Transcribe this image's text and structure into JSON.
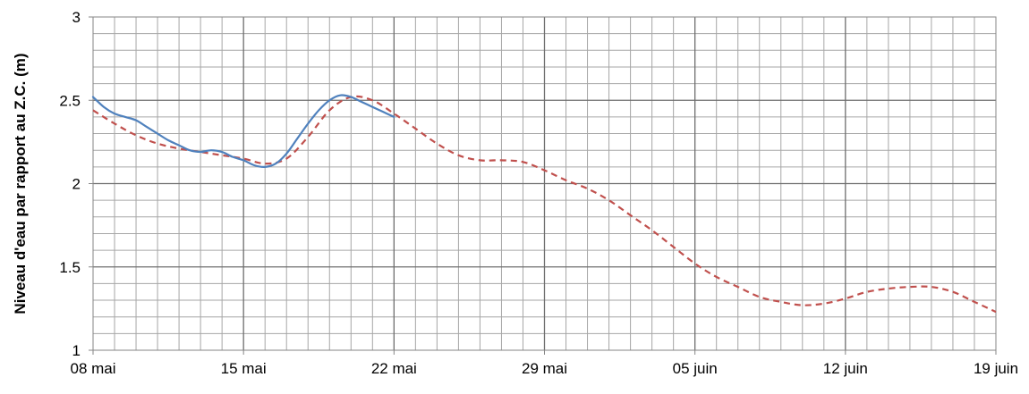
{
  "chart_data": {
    "type": "line",
    "title": "",
    "xlabel": "",
    "ylabel": "Niveau d'eau par rapport au Z.C. (m)",
    "x_ticks": [
      "08 mai",
      "15 mai",
      "22 mai",
      "29 mai",
      "05 juin",
      "12 juin",
      "19 juin"
    ],
    "y_ticks": [
      "1",
      "1.5",
      "2",
      "2.5",
      "3"
    ],
    "xlim": [
      0,
      42
    ],
    "ylim": [
      1,
      3
    ],
    "grid": true,
    "legend": "none",
    "series": [
      {
        "color": "#4f81bd",
        "dash": "solid",
        "x": [
          0,
          0.5,
          1,
          1.5,
          2,
          2.5,
          3,
          3.5,
          4,
          4.5,
          5,
          5.5,
          6,
          6.5,
          7,
          7.5,
          8,
          8.5,
          9,
          9.5,
          10,
          10.5,
          11,
          11.5,
          12,
          12.5,
          13,
          13.5,
          14
        ],
        "y": [
          2.52,
          2.46,
          2.42,
          2.4,
          2.38,
          2.34,
          2.3,
          2.26,
          2.23,
          2.2,
          2.19,
          2.2,
          2.19,
          2.16,
          2.14,
          2.11,
          2.1,
          2.12,
          2.18,
          2.27,
          2.36,
          2.44,
          2.5,
          2.53,
          2.52,
          2.49,
          2.46,
          2.43,
          2.4
        ]
      },
      {
        "color": "#c0504d",
        "dash": "dashed",
        "x": [
          0,
          1,
          2,
          3,
          4,
          5,
          6,
          7,
          8,
          9,
          10,
          11,
          12,
          13,
          14,
          15,
          16,
          17,
          18,
          19,
          20,
          21,
          22,
          23,
          24,
          25,
          26,
          27,
          28,
          29,
          30,
          31,
          32,
          33,
          34,
          35,
          36,
          37,
          38,
          39,
          40,
          41,
          42
        ],
        "y": [
          2.44,
          2.36,
          2.29,
          2.24,
          2.21,
          2.19,
          2.17,
          2.15,
          2.12,
          2.15,
          2.28,
          2.44,
          2.52,
          2.5,
          2.42,
          2.33,
          2.24,
          2.17,
          2.14,
          2.14,
          2.13,
          2.08,
          2.02,
          1.97,
          1.9,
          1.81,
          1.72,
          1.62,
          1.52,
          1.44,
          1.38,
          1.32,
          1.29,
          1.27,
          1.28,
          1.31,
          1.35,
          1.37,
          1.38,
          1.38,
          1.35,
          1.29,
          1.23
        ]
      }
    ]
  }
}
